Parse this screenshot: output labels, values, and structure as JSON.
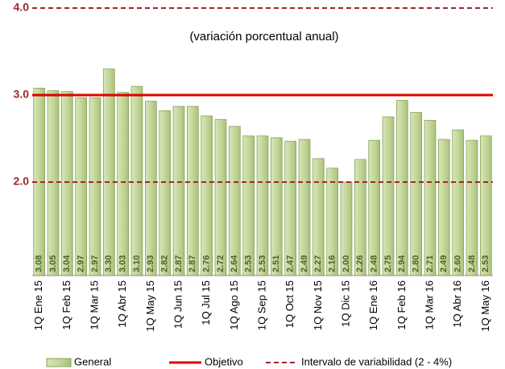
{
  "chart_data": {
    "type": "bar",
    "subtitle": "(variación porcentual anual)",
    "categories": [
      "1Q Ene 15",
      null,
      "1Q Feb 15",
      null,
      "1Q Mar 15",
      null,
      "1Q Abr 15",
      null,
      "1Q May 15",
      null,
      "1Q Jun 15",
      null,
      "1Q Jul 15",
      null,
      "1Q Ago 15",
      null,
      "1Q Sep 15",
      null,
      "1Q Oct 15",
      null,
      "1Q Nov 15",
      null,
      "1Q Dic 15",
      null,
      "1Q Ene 16",
      null,
      "1Q Feb 16",
      null,
      "1Q Mar 16",
      null,
      "1Q Abr 16",
      null,
      "1Q May 16"
    ],
    "series": [
      {
        "name": "General",
        "color": "#c4d79b",
        "values": [
          3.08,
          3.05,
          3.04,
          2.97,
          2.97,
          3.3,
          3.03,
          3.1,
          2.93,
          2.82,
          2.87,
          2.87,
          2.76,
          2.72,
          2.64,
          2.53,
          2.53,
          2.51,
          2.47,
          2.49,
          2.27,
          2.16,
          2.0,
          2.26,
          2.48,
          2.75,
          2.94,
          2.8,
          2.71,
          2.49,
          2.6,
          2.48,
          2.53
        ],
        "value_labels": [
          "3.08",
          "3.05",
          "3.04",
          "2.97",
          "2.97",
          "3.30",
          "3.03",
          "3.10",
          "2.93",
          "2.82",
          "2.87",
          "2.87",
          "2.76",
          "2.72",
          "2.64",
          "2.53",
          "2.53",
          "2.51",
          "2.47",
          "2.49",
          "2.27",
          "2.16",
          "2.00",
          "2.26",
          "2.48",
          "2.75",
          "2.94",
          "2.80",
          "2.71",
          "2.49",
          "2.60",
          "2.48",
          "2.53"
        ]
      }
    ],
    "reference_lines": [
      {
        "name": "Objetivo",
        "color": "#e00000",
        "style": "solid",
        "values": [
          3
        ]
      },
      {
        "name": "Intervalo de variabilidad (2 - 4%)",
        "color": "#a0282a",
        "style": "dashed",
        "values": [
          2,
          4
        ]
      }
    ],
    "ylim": [
      1,
      4
    ],
    "yticks": [
      {
        "value": 2,
        "label": "2.0"
      },
      {
        "value": 3,
        "label": "3.0"
      },
      {
        "value": 4,
        "label": "4.0"
      }
    ]
  }
}
